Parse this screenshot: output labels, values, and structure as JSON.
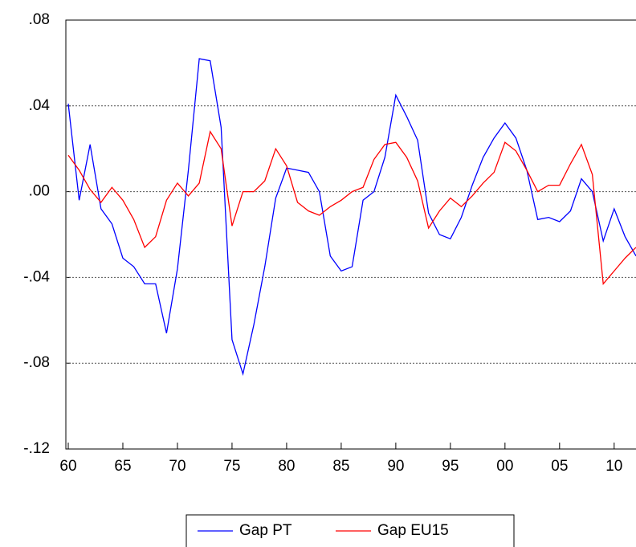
{
  "chart_data": {
    "type": "line",
    "x": [
      1960,
      1961,
      1962,
      1963,
      1964,
      1965,
      1966,
      1967,
      1968,
      1969,
      1970,
      1971,
      1972,
      1973,
      1974,
      1975,
      1976,
      1977,
      1978,
      1979,
      1980,
      1981,
      1982,
      1983,
      1984,
      1985,
      1986,
      1987,
      1988,
      1989,
      1990,
      1991,
      1992,
      1993,
      1994,
      1995,
      1996,
      1997,
      1998,
      1999,
      2000,
      2001,
      2002,
      2003,
      2004,
      2005,
      2006,
      2007,
      2008,
      2009,
      2010,
      2011,
      2012
    ],
    "series": [
      {
        "name": "Gap PT",
        "color": "#0000ff",
        "values": [
          0.041,
          -0.004,
          0.022,
          -0.008,
          -0.015,
          -0.031,
          -0.035,
          -0.043,
          -0.043,
          -0.066,
          -0.036,
          0.01,
          0.062,
          0.061,
          0.03,
          -0.069,
          -0.085,
          -0.062,
          -0.035,
          -0.003,
          0.011,
          0.01,
          0.009,
          0.0,
          -0.03,
          -0.037,
          -0.035,
          -0.004,
          0.0,
          0.016,
          0.045,
          0.035,
          0.024,
          -0.01,
          -0.02,
          -0.022,
          -0.012,
          0.003,
          0.016,
          0.025,
          0.032,
          0.025,
          0.01,
          -0.013,
          -0.012,
          -0.014,
          -0.009,
          0.006,
          0.0,
          -0.023,
          -0.008,
          -0.021,
          -0.03
        ]
      },
      {
        "name": "Gap EU15",
        "color": "#ff0000",
        "values": [
          0.017,
          0.01,
          0.001,
          -0.005,
          0.002,
          -0.004,
          -0.013,
          -0.026,
          -0.021,
          -0.004,
          0.004,
          -0.002,
          0.004,
          0.028,
          0.02,
          -0.016,
          0.0,
          0.0,
          0.005,
          0.02,
          0.012,
          -0.005,
          -0.009,
          -0.011,
          -0.007,
          -0.004,
          0.0,
          0.002,
          0.015,
          0.022,
          0.023,
          0.016,
          0.005,
          -0.017,
          -0.009,
          -0.003,
          -0.007,
          -0.002,
          0.004,
          0.009,
          0.023,
          0.019,
          0.01,
          0.0,
          0.003,
          0.003,
          0.013,
          0.022,
          0.008,
          -0.043,
          -0.037,
          -0.031,
          -0.026
        ]
      }
    ],
    "xlim": [
      1960,
      2012
    ],
    "xticks": [
      {
        "value": 1960,
        "label": "60"
      },
      {
        "value": 1965,
        "label": "65"
      },
      {
        "value": 1970,
        "label": "70"
      },
      {
        "value": 1975,
        "label": "75"
      },
      {
        "value": 1980,
        "label": "80"
      },
      {
        "value": 1985,
        "label": "85"
      },
      {
        "value": 1990,
        "label": "90"
      },
      {
        "value": 1995,
        "label": "95"
      },
      {
        "value": 2000,
        "label": "00"
      },
      {
        "value": 2005,
        "label": "05"
      },
      {
        "value": 2010,
        "label": "10"
      }
    ],
    "ylim": [
      -0.12,
      0.08
    ],
    "yticks": [
      {
        "value": -0.12,
        "label": "-.12"
      },
      {
        "value": -0.08,
        "label": "-.08"
      },
      {
        "value": -0.04,
        "label": "-.04"
      },
      {
        "value": 0,
        "label": ".00"
      },
      {
        "value": 0.04,
        "label": ".04"
      },
      {
        "value": 0.08,
        "label": ".08"
      }
    ],
    "grid": true
  }
}
